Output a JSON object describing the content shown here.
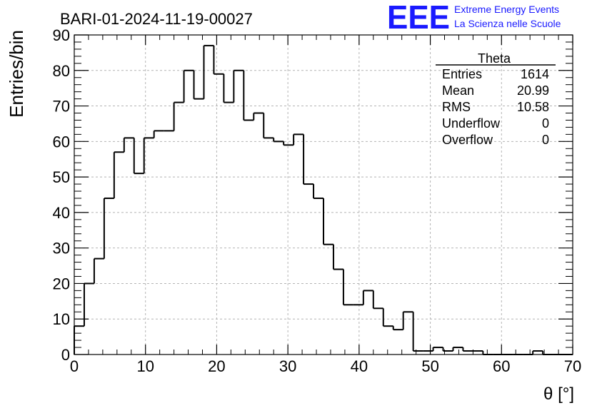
{
  "chart_data": {
    "type": "bar",
    "title": "BARI-01-2024-11-19-00027",
    "xlabel": "θ [°]",
    "ylabel": "Entries/bin",
    "xlim": [
      0,
      70
    ],
    "ylim": [
      0,
      90
    ],
    "xticks": [
      "0",
      "10",
      "20",
      "30",
      "40",
      "50",
      "60",
      "70"
    ],
    "yticks": [
      "0",
      "10",
      "20",
      "30",
      "40",
      "50",
      "60",
      "70",
      "80",
      "90"
    ],
    "grid": true,
    "bin_width": 1.4,
    "values": [
      8,
      20,
      27,
      44,
      57,
      61,
      51,
      61,
      63,
      63,
      71,
      80,
      72,
      87,
      79,
      71,
      80,
      66,
      68,
      61,
      60,
      59,
      62,
      48,
      44,
      31,
      24,
      14,
      14,
      18,
      13,
      8,
      7,
      12,
      1,
      1,
      2,
      1,
      2,
      1,
      1,
      0,
      0,
      0,
      0,
      0,
      1,
      0,
      0,
      0
    ],
    "stats": {
      "title": "Theta",
      "rows": [
        {
          "label": "Entries",
          "value": "1614"
        },
        {
          "label": "Mean",
          "value": "20.99"
        },
        {
          "label": "RMS",
          "value": "10.58"
        },
        {
          "label": "Underflow",
          "value": "0"
        },
        {
          "label": "Overflow",
          "value": "0"
        }
      ]
    },
    "colors": {
      "line": "#000000",
      "grid": "#b4b4b4",
      "brand": "#1a1aff"
    }
  },
  "branding": {
    "logo": "EEE",
    "line1": "Extreme Energy Events",
    "line2": "La Scienza nelle Scuole"
  }
}
